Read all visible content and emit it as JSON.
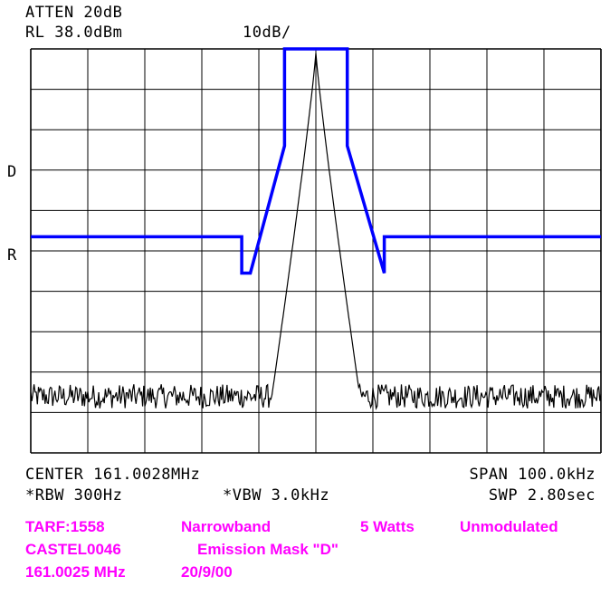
{
  "header": {
    "atten": "ATTEN 20dB",
    "ref_level": "RL 38.0dBm",
    "scale": "10dB/"
  },
  "markers": {
    "d_label": "D",
    "r_label": "R"
  },
  "footer": {
    "center": "CENTER 161.0028MHz",
    "span": "SPAN 100.0kHz",
    "rbw": "*RBW 300Hz",
    "vbw": "*VBW 3.0kHz",
    "sweep": "SWP 2.80sec"
  },
  "caption": {
    "tarf": "TARF:1558",
    "band": "Narrowband",
    "power": "5 Watts",
    "modulation": "Unmodulated",
    "station": "CASTEL0046",
    "mask_name": "Emission Mask \"D\"",
    "frequency": "161.0025 MHz",
    "date": "20/9/00"
  },
  "colors": {
    "mask": "#0000ff",
    "trace": "#000000",
    "caption": "#ff00ff",
    "grid": "#000000"
  },
  "chart_data": {
    "type": "line",
    "x_unit": "kHz offset from center",
    "y_unit": "dBm",
    "xlim": [
      -50,
      50
    ],
    "ylim": [
      -62,
      38
    ],
    "grid": true,
    "divisions": {
      "x": 10,
      "y": 10
    },
    "series": [
      {
        "role": "mask",
        "x": [
          -50,
          -13,
          -13,
          -11.5,
          -5.5,
          -5.5,
          5.5,
          5.5,
          12,
          12,
          50
        ],
        "y": [
          -8.5,
          -8.5,
          -17.5,
          -17.5,
          14,
          38,
          38,
          14,
          -17.5,
          -8.5,
          -8.5
        ]
      },
      {
        "role": "trace",
        "peak_x": 0,
        "peak_y": 37,
        "noise_floor": -48,
        "noise_ripple": 3
      }
    ]
  }
}
